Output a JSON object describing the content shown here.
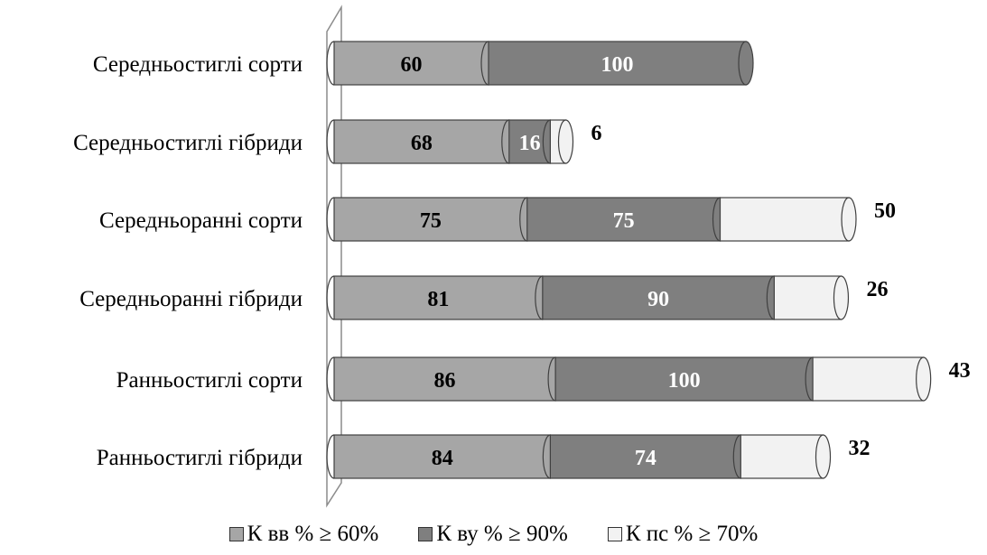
{
  "chart_data": {
    "type": "bar",
    "orientation": "horizontal",
    "stacked": true,
    "categories": [
      "Середньостиглі сорти",
      "Середньостиглі гібриди",
      "Середньоранні сорти",
      "Середньоранні гібриди",
      "Ранньостиглі сорти",
      "Ранньостиглі гібриди"
    ],
    "series": [
      {
        "name": "К вв % ≥ 60%",
        "values": [
          60,
          68,
          75,
          81,
          86,
          84
        ],
        "color": "#a6a6a6",
        "label_color": "#000000"
      },
      {
        "name": "К ву % ≥ 90%",
        "values": [
          100,
          16,
          75,
          90,
          100,
          74
        ],
        "color": "#7f7f7f",
        "label_color": "#ffffff"
      },
      {
        "name": "К пс % ≥ 70%",
        "values": [
          0,
          6,
          50,
          26,
          43,
          32
        ],
        "color": "#f2f2f2",
        "label_color": "#000000"
      }
    ],
    "segment_labels": [
      [
        "60",
        "100",
        ""
      ],
      [
        "68",
        "16",
        "6"
      ],
      [
        "75",
        "75",
        "50"
      ],
      [
        "81",
        "90",
        "26"
      ],
      [
        "86",
        "100",
        "43"
      ],
      [
        "84",
        "74",
        "32"
      ]
    ],
    "xlim": [
      0,
      230
    ],
    "grid": false,
    "legend_position": "bottom",
    "style": "3d-cylinder"
  }
}
